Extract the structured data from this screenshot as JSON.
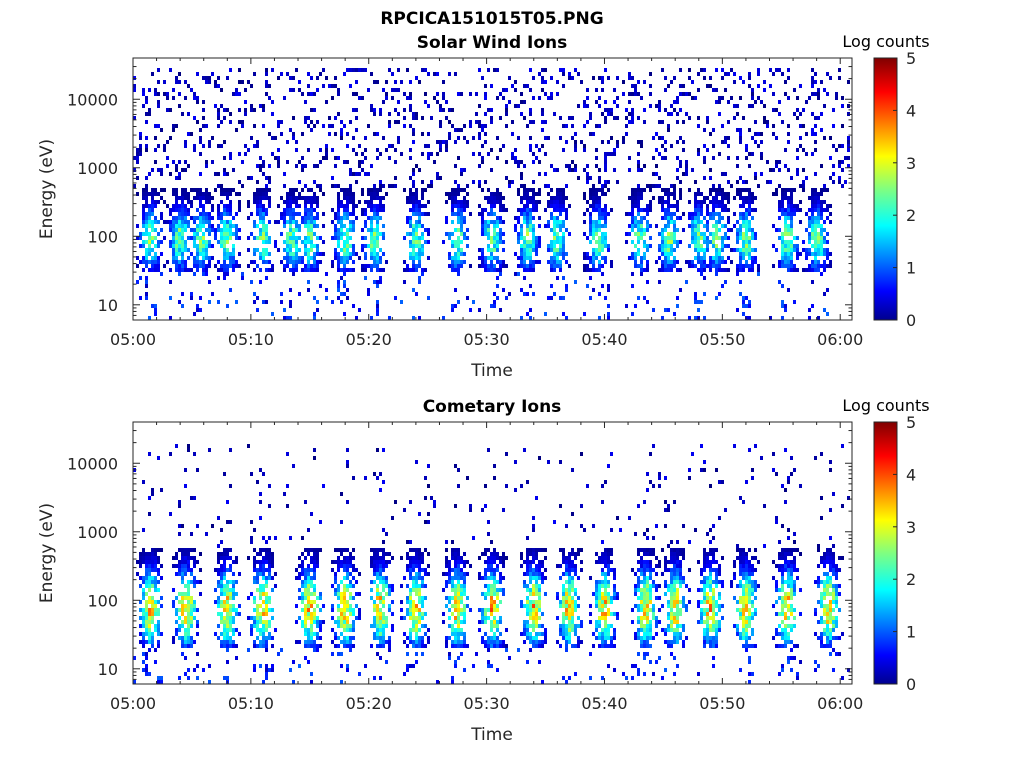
{
  "figure": {
    "title": "RPCICA151015T05.PNG"
  },
  "chart_data": [
    {
      "type": "heatmap",
      "title": "Solar Wind Ions",
      "xlabel": "Time",
      "ylabel": "Energy (eV)",
      "x_ticks": [
        "05:00",
        "05:10",
        "05:20",
        "05:30",
        "05:40",
        "05:50",
        "06:00"
      ],
      "y_scale": "log",
      "y_ticks": [
        10,
        100,
        1000,
        10000
      ],
      "y_tick_labels": [
        "10",
        "100",
        "1000",
        "10000"
      ],
      "y_range": [
        6,
        40000
      ],
      "x_range_minutes": [
        0,
        61
      ],
      "colorbar": {
        "label": "Log counts",
        "ticks": [
          "0",
          "1",
          "2",
          "3",
          "4",
          "5"
        ],
        "range": [
          0,
          5
        ],
        "colormap": "jet"
      },
      "bursts_minutes": [
        1.5,
        4,
        5.8,
        8,
        11,
        13.5,
        15,
        18,
        20.5,
        24,
        27.5,
        30.5,
        33.5,
        36,
        39.5,
        43,
        45.5,
        48,
        49.5,
        52,
        55.5,
        58
      ],
      "typical_energy_eV": [
        30,
        500
      ],
      "peak_log_counts": 3,
      "background_energy_eV": [
        500,
        30000
      ]
    },
    {
      "type": "heatmap",
      "title": "Cometary Ions",
      "xlabel": "Time",
      "ylabel": "Energy (eV)",
      "x_ticks": [
        "05:00",
        "05:10",
        "05:20",
        "05:30",
        "05:40",
        "05:50",
        "06:00"
      ],
      "y_scale": "log",
      "y_ticks": [
        10,
        100,
        1000,
        10000
      ],
      "y_tick_labels": [
        "10",
        "100",
        "1000",
        "10000"
      ],
      "y_range": [
        6,
        40000
      ],
      "x_range_minutes": [
        0,
        61
      ],
      "colorbar": {
        "label": "Log counts",
        "ticks": [
          "0",
          "1",
          "2",
          "3",
          "4",
          "5"
        ],
        "range": [
          0,
          5
        ],
        "colormap": "jet"
      },
      "bursts_minutes": [
        1.5,
        4.5,
        8,
        11,
        15,
        18,
        21,
        24,
        27.5,
        30.5,
        34,
        37,
        40,
        43.5,
        46,
        49,
        52,
        55.5,
        59
      ],
      "typical_energy_eV": [
        20,
        600
      ],
      "peak_log_counts": 4.2,
      "background_energy_eV": [
        600,
        20000
      ]
    }
  ]
}
